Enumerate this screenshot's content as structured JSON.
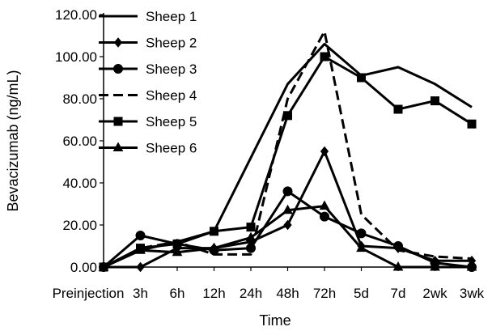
{
  "chart_data": {
    "type": "line",
    "title": "",
    "xlabel": "Time",
    "ylabel": "Bevacizumab (ng/mL)",
    "ylim": [
      0,
      120
    ],
    "yticks": [
      "0.00",
      "20.00",
      "40.00",
      "60.00",
      "80.00",
      "100.00",
      "120.00"
    ],
    "categories": [
      "Preinjection",
      "3h",
      "6h",
      "12h",
      "24h",
      "48h",
      "72h",
      "5d",
      "7d",
      "2wk",
      "3wk"
    ],
    "grid": false,
    "legend_position": "top-left",
    "series": [
      {
        "name": "Sheep 1",
        "marker": "none",
        "dash": "solid",
        "color": "#000000",
        "values": [
          0,
          8,
          12,
          17,
          52,
          87,
          106,
          91,
          95,
          87,
          76
        ]
      },
      {
        "name": "Sheep 2",
        "marker": "diamond",
        "dash": "solid",
        "color": "#000000",
        "values": [
          0,
          0,
          9,
          9,
          12,
          20,
          55,
          10,
          9,
          3,
          3
        ]
      },
      {
        "name": "Sheep 3",
        "marker": "circle",
        "dash": "solid",
        "color": "#000000",
        "values": [
          0,
          15,
          11,
          8,
          9,
          36,
          24,
          16,
          10,
          2,
          0
        ]
      },
      {
        "name": "Sheep 4",
        "marker": "none",
        "dash": "dashed",
        "color": "#000000",
        "values": [
          0,
          9,
          12,
          6,
          6,
          80,
          112,
          25,
          8,
          5,
          4
        ]
      },
      {
        "name": "Sheep 5",
        "marker": "square",
        "dash": "solid",
        "color": "#000000",
        "values": [
          0,
          9,
          11,
          17,
          19,
          72,
          100,
          90,
          75,
          79,
          68
        ]
      },
      {
        "name": "Sheep 6",
        "marker": "triangle",
        "dash": "solid",
        "color": "#000000",
        "values": [
          0,
          8,
          7,
          9,
          14,
          27,
          29,
          9,
          0,
          0,
          0
        ]
      }
    ]
  }
}
